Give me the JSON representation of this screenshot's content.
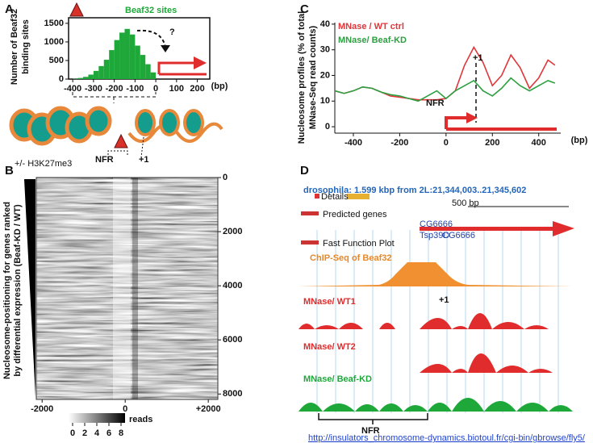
{
  "panel_labels": [
    "A",
    "B",
    "C",
    "D"
  ],
  "cartoon": {
    "left_label": "+/- H3K27me3",
    "nfr": "NFR",
    "plus1": "+1",
    "question": "?"
  },
  "chart_data": [
    {
      "type": "histogram",
      "title": "Beaf32 sites",
      "color": "#1fa83a",
      "ylabel": [
        "Number of Beaf32",
        "binding sites"
      ],
      "x_unit": "(bp)",
      "bins": [
        -400,
        -375,
        -350,
        -325,
        -300,
        -275,
        -250,
        -225,
        -200,
        -175,
        -150,
        -125,
        -100,
        -75,
        -50,
        -25,
        0
      ],
      "values": [
        10,
        30,
        60,
        120,
        220,
        350,
        520,
        780,
        1050,
        1250,
        1350,
        1200,
        900,
        650,
        400,
        180
      ],
      "xlim": [
        -420,
        260
      ],
      "xticks": [
        -400,
        -300,
        -200,
        -100,
        0,
        100,
        200
      ],
      "ylim": [
        0,
        1650
      ],
      "yticks": [
        0,
        500,
        1000,
        1500
      ]
    },
    {
      "type": "heatmap",
      "ylabel": [
        "Nucleosome-positioning  for genes ranked",
        "by differential expression (Beaf-KD / WT)"
      ],
      "xlim": [
        -2140,
        2230
      ],
      "xticks": [
        -2000,
        0,
        {
          "value": 2000,
          "label": "+2000"
        }
      ],
      "ylim": [
        0,
        8200
      ],
      "yticks": [
        0,
        2000,
        4000,
        6000,
        8000
      ],
      "y_inverted": true,
      "colorbar_ticks": [
        0,
        2,
        4,
        6,
        8
      ],
      "colorbar_label": "reads"
    },
    {
      "type": "line",
      "ylabel": [
        "Nucleosome profiles (% of total",
        "MNase-Seq read counts)"
      ],
      "x_unit": "(bp)",
      "annotations": {
        "plus1": "+1",
        "nfr": "NFR"
      },
      "x": [
        -480,
        -440,
        -400,
        -360,
        -320,
        -280,
        -240,
        -200,
        -160,
        -120,
        -80,
        -40,
        0,
        40,
        80,
        120,
        160,
        200,
        240,
        280,
        320,
        360,
        400,
        440,
        470
      ],
      "series": [
        {
          "name": "MNase / WT ctrl",
          "color": "#e0353a",
          "values": [
            14,
            13,
            14,
            15.5,
            15,
            13.5,
            12,
            11.5,
            11,
            10.5,
            10.5,
            10.5,
            11,
            14,
            24,
            31,
            25,
            16,
            20,
            28,
            23,
            15,
            19,
            26,
            24
          ]
        },
        {
          "name": "MNase/ Beaf-KD",
          "color": "#2ca040",
          "values": [
            14,
            13,
            14,
            15.5,
            15,
            13.5,
            12.5,
            12,
            11,
            10,
            12,
            14,
            11,
            14,
            16,
            18,
            14,
            12,
            15,
            19,
            16,
            14,
            16,
            18,
            17
          ]
        }
      ],
      "xlim": [
        -480,
        495
      ],
      "xticks": [
        -400,
        -200,
        0,
        200,
        400
      ],
      "ylim": [
        -2.5,
        40.6
      ],
      "yticks": [
        0,
        10,
        20,
        30,
        40
      ]
    }
  ],
  "browser": {
    "title": "drosophila: 1.599 kbp from 2L:21,344,003..21,345,602",
    "details": "Details",
    "scale": "500 bp",
    "predicted": "Predicted genes",
    "gene1": "CG6666",
    "gene2": "Tsp39D",
    "gene3": "CG6666",
    "fast": "Fast Function Plot",
    "tracks": [
      "ChIP-Seq of Beaf32",
      "MNase/ WT1",
      "MNase/ WT2",
      "MNase/ Beaf-KD"
    ],
    "plus1": "+1",
    "nfr": "NFR",
    "url": "http://insulators_chromosome-dynamics.biotoul.fr/cgi-bin/gbrowse/fly5/"
  }
}
